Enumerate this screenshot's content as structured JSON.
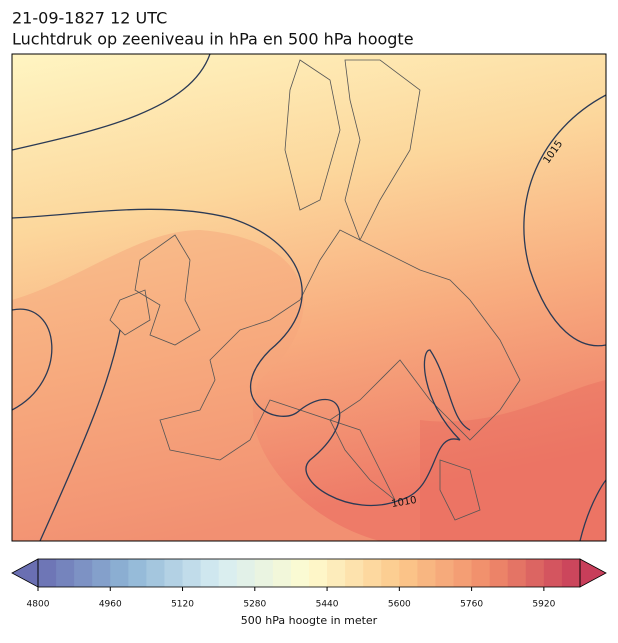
{
  "header": {
    "date": "21-09-1827 12 UTC",
    "title": "Luchtdruk op zeeniveau in hPa en 500 hPa hoogte"
  },
  "map": {
    "isobar_labels": [
      1015,
      1010
    ]
  },
  "colorbar": {
    "label": "500 hPa hoogte in meter",
    "range": [
      4800,
      6000
    ],
    "step": 40,
    "ticks": [
      4800,
      4960,
      5120,
      5280,
      5440,
      5600,
      5760,
      5920
    ],
    "colors": [
      "#6a6fb2",
      "#8fb5d6",
      "#d6ecf2",
      "#fefbcf",
      "#fcc98b",
      "#f08b6a",
      "#c83e5a"
    ]
  }
}
